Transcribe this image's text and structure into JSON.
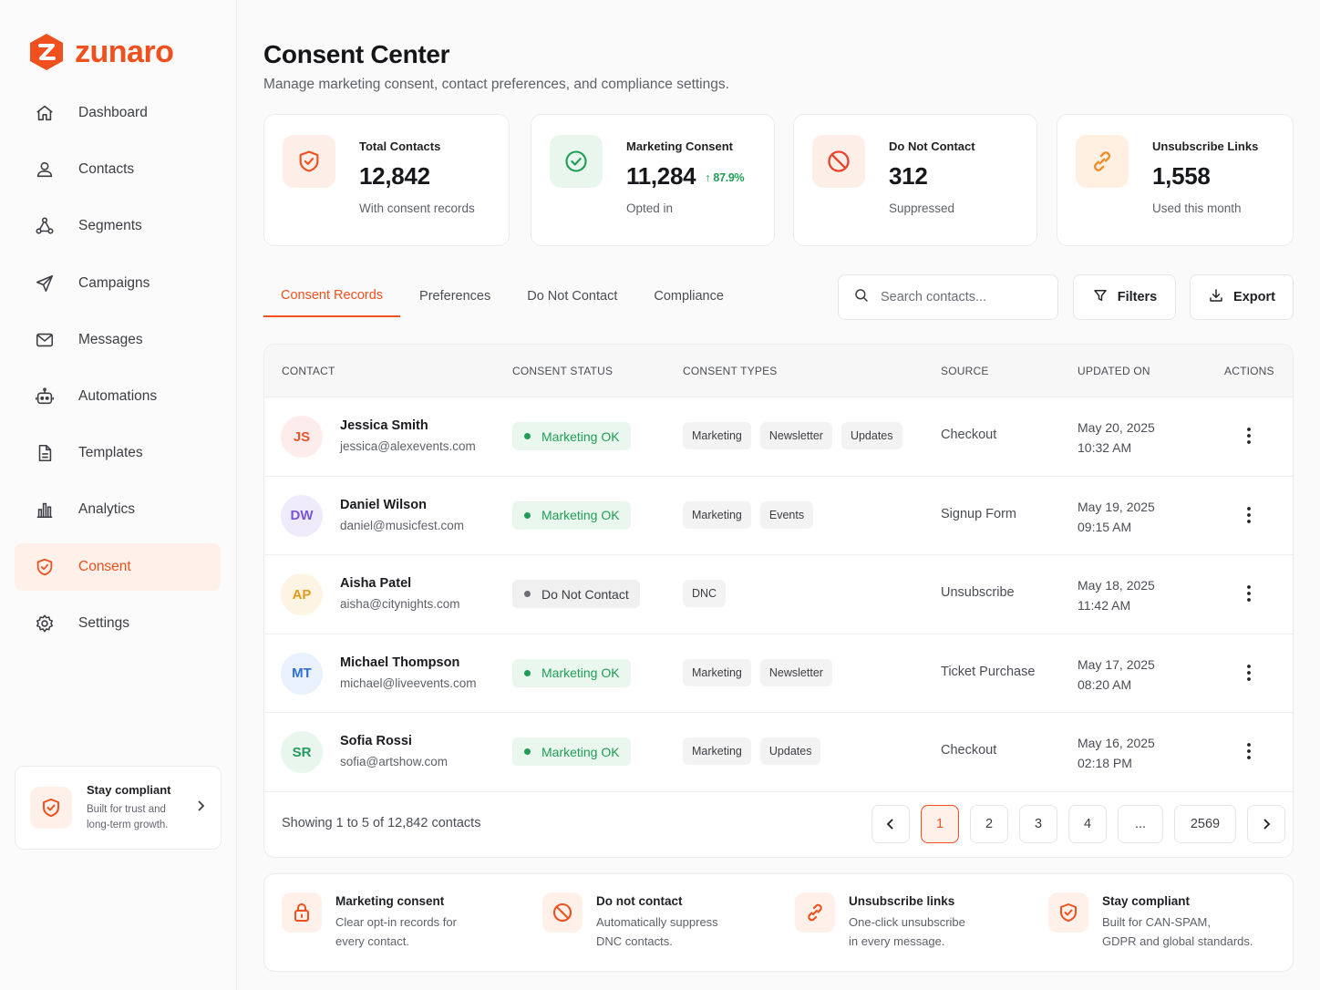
{
  "brand": {
    "name": "zunaro",
    "accent": "#f0501e"
  },
  "sidebar": {
    "items": [
      {
        "label": "Dashboard",
        "icon": "home-icon"
      },
      {
        "label": "Contacts",
        "icon": "user-icon"
      },
      {
        "label": "Segments",
        "icon": "segments-icon"
      },
      {
        "label": "Campaigns",
        "icon": "send-icon"
      },
      {
        "label": "Messages",
        "icon": "mail-icon"
      },
      {
        "label": "Automations",
        "icon": "robot-icon"
      },
      {
        "label": "Templates",
        "icon": "document-icon"
      },
      {
        "label": "Analytics",
        "icon": "bar-chart-icon"
      },
      {
        "label": "Consent",
        "icon": "shield-check-icon",
        "active": true
      },
      {
        "label": "Settings",
        "icon": "gear-icon"
      }
    ],
    "promo": {
      "title": "Stay compliant",
      "subtitle": "Built for trust and long-term growth."
    }
  },
  "header": {
    "title": "Consent Center",
    "subtitle": "Manage marketing consent, contact preferences, and compliance settings."
  },
  "stats": [
    {
      "label": "Total Contacts",
      "value": "12,842",
      "sub": "With consent records",
      "icon": "shield-check-icon"
    },
    {
      "label": "Marketing Consent",
      "value": "11,284",
      "trend": "87.9%",
      "sub": "Opted in",
      "icon": "check-circle-icon"
    },
    {
      "label": "Do Not Contact",
      "value": "312",
      "sub": "Suppressed",
      "icon": "ban-icon"
    },
    {
      "label": "Unsubscribe Links",
      "value": "1,558",
      "sub": "Used this month",
      "icon": "link-icon"
    }
  ],
  "tabs": [
    "Consent Records",
    "Preferences",
    "Do Not Contact",
    "Compliance"
  ],
  "toolbar": {
    "search_placeholder": "Search contacts...",
    "filters_label": "Filters",
    "export_label": "Export"
  },
  "table": {
    "columns": [
      "CONTACT",
      "CONSENT STATUS",
      "CONSENT TYPES",
      "SOURCE",
      "UPDATED ON",
      "ACTIONS"
    ],
    "rows": [
      {
        "initials": "JS",
        "name": "Jessica Smith",
        "email": "jessica@alexevents.com",
        "status": "Marketing OK",
        "status_kind": "ok",
        "types": [
          "Marketing",
          "Newsletter",
          "Updates"
        ],
        "source": "Checkout",
        "date": "May 20, 2025",
        "time": "10:32 AM",
        "avatar_bg": "#fdecec",
        "avatar_fg": "#e8552b"
      },
      {
        "initials": "DW",
        "name": "Daniel Wilson",
        "email": "daniel@musicfest.com",
        "status": "Marketing OK",
        "status_kind": "ok",
        "types": [
          "Marketing",
          "Events"
        ],
        "source": "Signup Form",
        "date": "May 19, 2025",
        "time": "09:15 AM",
        "avatar_bg": "#efebfb",
        "avatar_fg": "#7b55d6"
      },
      {
        "initials": "AP",
        "name": "Aisha Patel",
        "email": "aisha@citynights.com",
        "status": "Do Not Contact",
        "status_kind": "dnc",
        "types": [
          "DNC"
        ],
        "source": "Unsubscribe",
        "date": "May 18, 2025",
        "time": "11:42 AM",
        "avatar_bg": "#fdf4e4",
        "avatar_fg": "#e39a1a"
      },
      {
        "initials": "MT",
        "name": "Michael Thompson",
        "email": "michael@liveevents.com",
        "status": "Marketing OK",
        "status_kind": "ok",
        "types": [
          "Marketing",
          "Newsletter"
        ],
        "source": "Ticket Purchase",
        "date": "May 17, 2025",
        "time": "08:20 AM",
        "avatar_bg": "#e8f1fc",
        "avatar_fg": "#2f6fd6"
      },
      {
        "initials": "SR",
        "name": "Sofia Rossi",
        "email": "sofia@artshow.com",
        "status": "Marketing OK",
        "status_kind": "ok",
        "types": [
          "Marketing",
          "Updates"
        ],
        "source": "Checkout",
        "date": "May 16, 2025",
        "time": "02:18 PM",
        "avatar_bg": "#e8f6ee",
        "avatar_fg": "#27995a"
      }
    ],
    "showing": "Showing 1 to 5 of 12,842 contacts",
    "pages": [
      "1",
      "2",
      "3",
      "4",
      "...",
      "2569"
    ],
    "current_page": "1"
  },
  "features": [
    {
      "title": "Marketing consent",
      "desc1": "Clear opt-in records for",
      "desc2": "every contact.",
      "icon": "lock-icon"
    },
    {
      "title": "Do not contact",
      "desc1": "Automatically suppress",
      "desc2": "DNC contacts.",
      "icon": "ban-icon"
    },
    {
      "title": "Unsubscribe links",
      "desc1": "One-click unsubscribe",
      "desc2": "in every message.",
      "icon": "link-icon"
    },
    {
      "title": "Stay compliant",
      "desc1": "Built for CAN-SPAM,",
      "desc2": "GDPR and global standards.",
      "icon": "shield-check-icon"
    }
  ]
}
